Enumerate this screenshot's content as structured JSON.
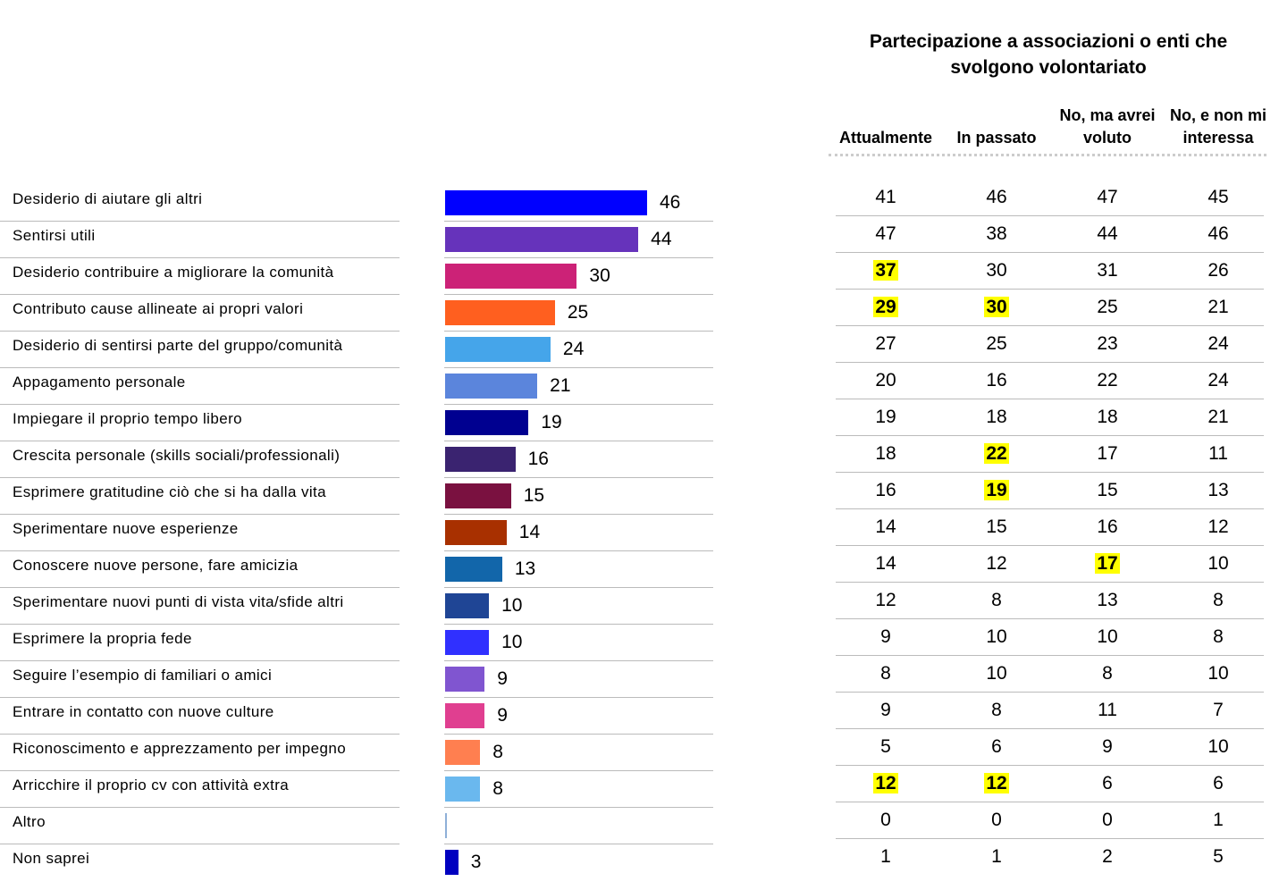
{
  "table_title": "Partecipazione a associazioni o enti che svolgono volontariato",
  "table_title_lines": [
    "Partecipazione a associazioni o enti che",
    "svolgono volontariato"
  ],
  "highlight_color": "#ffff00",
  "chart_data": {
    "type": "bar",
    "orientation": "horizontal",
    "title": "",
    "xlabel": "",
    "ylabel": "",
    "xlim": [
      0,
      50
    ],
    "grid": false,
    "categories": [
      "Desiderio di aiutare gli altri",
      "Sentirsi utili",
      "Desiderio contribuire a migliorare la comunità",
      "Contributo cause allineate ai propri valori",
      "Desiderio di sentirsi parte del gruppo/comunità",
      "Appagamento personale",
      "Impiegare il proprio tempo libero",
      "Crescita personale (skills sociali/professionali)",
      "Esprimere gratitudine ciò che si ha dalla vita",
      "Sperimentare nuove esperienze",
      "Conoscere nuove persone, fare amicizia",
      "Sperimentare nuovi punti di vista vita/sfide altri",
      "Esprimere la propria fede",
      "Seguire l’esempio di familiari o amici",
      "Entrare in contatto con nuove culture",
      "Riconoscimento e apprezzamento per impegno",
      "Arricchire il proprio cv con attività extra",
      "Altro",
      "Non saprei"
    ],
    "values": [
      46,
      44,
      30,
      25,
      24,
      21,
      19,
      16,
      15,
      14,
      13,
      10,
      10,
      9,
      9,
      8,
      8,
      0.3,
      3
    ],
    "value_labels": [
      "46",
      "44",
      "30",
      "25",
      "24",
      "21",
      "19",
      "16",
      "15",
      "14",
      "13",
      "10",
      "10",
      "9",
      "9",
      "8",
      "8",
      "",
      "3"
    ],
    "colors": [
      "#0000ff",
      "#6633bb",
      "#cc2277",
      "#ff5f1f",
      "#45a5ea",
      "#5b85dc",
      "#000090",
      "#3a2370",
      "#7a1140",
      "#a83000",
      "#1266aa",
      "#1f4595",
      "#3030ff",
      "#8055d0",
      "#e03f90",
      "#ff7f50",
      "#6ab8ee",
      "#8fb0d8",
      "#0000c0"
    ],
    "table": {
      "columns": [
        "Attualmente",
        "In passato",
        "No, ma avrei voluto",
        "No, e non mi interessa"
      ],
      "column_lines": [
        [
          "Attualmente"
        ],
        [
          "In passato"
        ],
        [
          "No, ma avrei",
          "voluto"
        ],
        [
          "No, e non mi",
          "interessa"
        ]
      ],
      "rows": [
        [
          41,
          46,
          47,
          45
        ],
        [
          47,
          38,
          44,
          46
        ],
        [
          37,
          30,
          31,
          26
        ],
        [
          29,
          30,
          25,
          21
        ],
        [
          27,
          25,
          23,
          24
        ],
        [
          20,
          16,
          22,
          24
        ],
        [
          19,
          18,
          18,
          21
        ],
        [
          18,
          22,
          17,
          11
        ],
        [
          16,
          19,
          15,
          13
        ],
        [
          14,
          15,
          16,
          12
        ],
        [
          14,
          12,
          17,
          10
        ],
        [
          12,
          8,
          13,
          8
        ],
        [
          9,
          10,
          10,
          8
        ],
        [
          8,
          10,
          8,
          10
        ],
        [
          9,
          8,
          11,
          7
        ],
        [
          5,
          6,
          9,
          10
        ],
        [
          12,
          12,
          6,
          6
        ],
        [
          0,
          0,
          0,
          1
        ],
        [
          1,
          1,
          2,
          5
        ]
      ],
      "highlighted": [
        [
          2,
          0
        ],
        [
          3,
          0
        ],
        [
          3,
          1
        ],
        [
          7,
          1
        ],
        [
          8,
          1
        ],
        [
          10,
          2
        ],
        [
          16,
          0
        ],
        [
          16,
          1
        ]
      ]
    }
  }
}
